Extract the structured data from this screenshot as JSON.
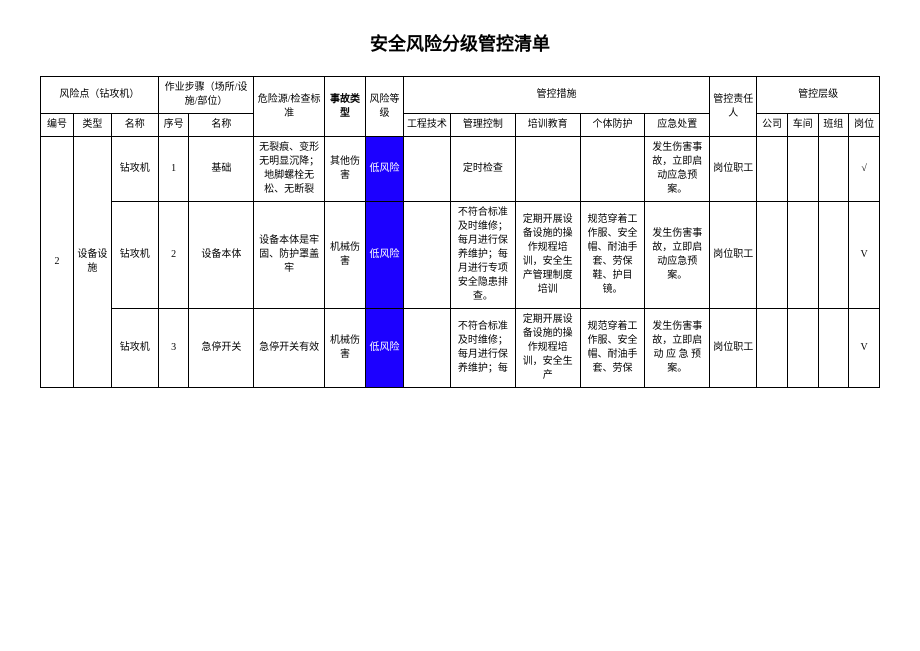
{
  "title": "安全风险分级管控清单",
  "headers": {
    "risk_point": "风险点（钻攻机）",
    "operation_step": "作业步骤（场所/设施/部位）",
    "hazard_source": "危险源/检查标准",
    "accident_type": "事故类型",
    "risk_level": "风险等级",
    "control_measures": "管控措施",
    "responsible": "管控责任人",
    "control_level": "管控层级",
    "sub": {
      "id": "编号",
      "type": "类型",
      "name": "名称",
      "seq": "序号",
      "step_name": "名称",
      "engineering": "工程技术",
      "management": "管理控制",
      "training": "培训教育",
      "ppe": "个体防护",
      "emergency": "应急处置",
      "company": "公司",
      "workshop": "车间",
      "team": "班组",
      "position": "岗位"
    }
  },
  "group": {
    "id": "2",
    "type": "设备设施"
  },
  "rows": [
    {
      "name": "钻攻机",
      "seq": "1",
      "step": "基础",
      "hazard": "无裂痕、变形无明显沉降；地脚螺栓无松、无断裂",
      "accident": "其他伤害",
      "risk": "低风险",
      "engineering": "",
      "management": "定时检查",
      "training": "",
      "ppe": "",
      "emergency": "发生伤害事故，立即启动应急预案。",
      "responsible": "岗位职工",
      "company": "",
      "workshop": "",
      "team": "",
      "position": "√"
    },
    {
      "name": "钻攻机",
      "seq": "2",
      "step": "设备本体",
      "hazard": "设备本体是牢固、防护罩盖牢",
      "accident": "机械伤害",
      "risk": "低风险",
      "engineering": "",
      "management": "不符合标准及时维修；每月进行保养维护；每月进行专项安全隐患排查。",
      "training": "定期开展设备设施的操作规程培训，安全生产管理制度培训",
      "ppe": "规范穿着工作服、安全帽、耐油手 套、劳保鞋、护目镜。",
      "emergency": "发生伤害事故，立即启动应急预案。",
      "responsible": "岗位职工",
      "company": "",
      "workshop": "",
      "team": "",
      "position": "V"
    },
    {
      "name": "钻攻机",
      "seq": "3",
      "step": "急停开关",
      "hazard": "急停开关有效",
      "accident": "机械伤害",
      "risk": "低风险",
      "engineering": "",
      "management": "不符合标准及时维修；每月进行保养维护；每",
      "training": "定期开展设备设施的操作规程培训，安全生产",
      "ppe": "规范穿着工作服、安全帽、耐油手 套、劳保",
      "emergency": "发生伤害事故，立即启动 应 急 预案。",
      "responsible": "岗位职工",
      "company": "",
      "workshop": "",
      "team": "",
      "position": "V"
    }
  ],
  "colors": {
    "risk_low_bg": "#1c00ff",
    "risk_low_text": "#ffffff",
    "border": "#000000",
    "background": "#ffffff"
  }
}
